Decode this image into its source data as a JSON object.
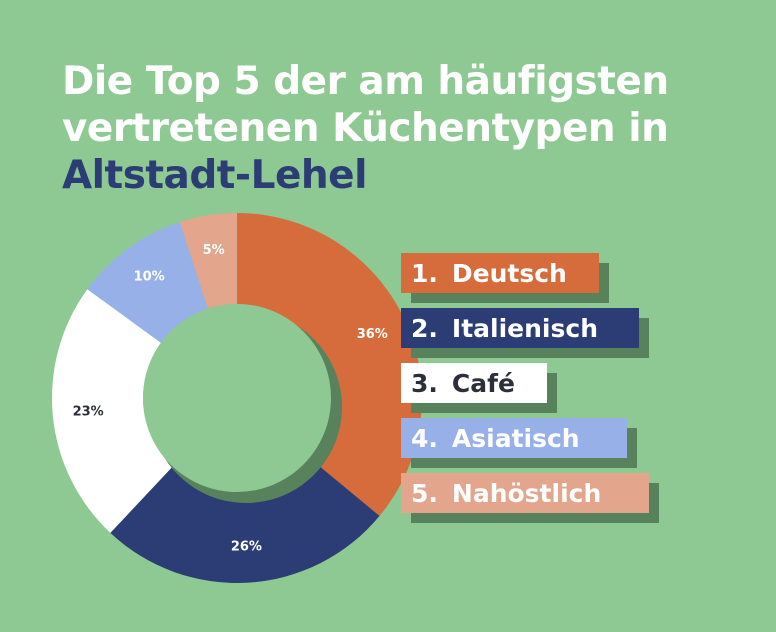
{
  "title": {
    "line1": "Die Top 5 der am häufigsten",
    "line2": "vertretenen Küchentypen in",
    "line3": "Altstadt-Lehel"
  },
  "colors": {
    "background": "#8ec892",
    "shadow": "#57825c",
    "title_white": "#ffffff",
    "title_navy": "#2b3d74"
  },
  "chart_data": {
    "type": "pie",
    "donut": true,
    "title": "Die Top 5 der am häufigsten vertretenen Küchentypen in Altstadt-Lehel",
    "unit": "%",
    "legend_position": "right",
    "slices": [
      {
        "rank": "1.",
        "label": "Deutsch",
        "value": 36,
        "color": "#d66b3c",
        "text_color": "#ffffff",
        "value_text_color": "#ffffff"
      },
      {
        "rank": "2.",
        "label": "Italienisch",
        "value": 26,
        "color": "#2b3d74",
        "text_color": "#ffffff",
        "value_text_color": "#ffffff"
      },
      {
        "rank": "3.",
        "label": "Café",
        "value": 23,
        "color": "#ffffff",
        "text_color": "#2b2f3a",
        "value_text_color": "#2b2f3a"
      },
      {
        "rank": "4.",
        "label": "Asiatisch",
        "value": 10,
        "color": "#97b0e8",
        "text_color": "#ffffff",
        "value_text_color": "#ffffff"
      },
      {
        "rank": "5.",
        "label": "Nahöstlich",
        "value": 5,
        "color": "#e3a58b",
        "text_color": "#ffffff",
        "value_text_color": "#ffffff"
      }
    ]
  }
}
